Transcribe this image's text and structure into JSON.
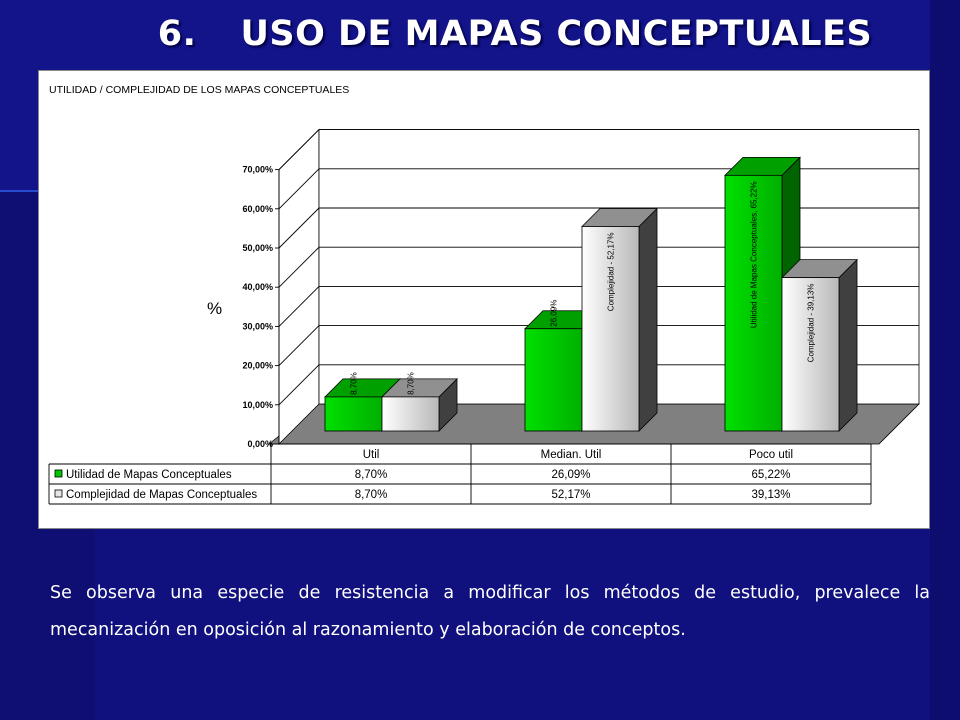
{
  "slide": {
    "title_number": "6.",
    "title_text": "USO DE MAPAS CONCEPTUALES",
    "body": "Se observa una especie de resistencia a modificar los métodos de estudio, prevalece la mecanización en oposición al razonamiento y elaboración de conceptos."
  },
  "colors": {
    "background": "#10107e",
    "series1": "#00c800",
    "series2": "#e6e6e6"
  },
  "chart_data": {
    "type": "bar",
    "title": "UTILIDAD / COMPLEJIDAD DE LOS MAPAS CONCEPTUALES",
    "ylabel": "%",
    "xlabel": "",
    "ylim": [
      0,
      70
    ],
    "yticks": [
      "0,00%",
      "10,00%",
      "20,00%",
      "30,00%",
      "40,00%",
      "50,00%",
      "60,00%",
      "70,00%"
    ],
    "categories": [
      "Util",
      "Median. Util",
      "Poco util"
    ],
    "series": [
      {
        "name": "Utilidad de Mapas Conceptuales",
        "values": [
          8.7,
          26.09,
          65.22
        ],
        "display": [
          "8,70%",
          "26,09%",
          "65,22%"
        ],
        "bar_labels": [
          "8,70%",
          "26,09%",
          "Utilidad de Mapas Conceptuales,  65,22%"
        ]
      },
      {
        "name": "Complejidad de Mapas Conceptuales",
        "values": [
          8.7,
          52.17,
          39.13
        ],
        "display": [
          "8,70%",
          "52,17%",
          "39,13%"
        ],
        "bar_labels": [
          "8,70%",
          "Complejidad -  52,17%",
          "Complejidad -  39,13%"
        ]
      }
    ],
    "grid": true,
    "legend": "data-table-below"
  }
}
